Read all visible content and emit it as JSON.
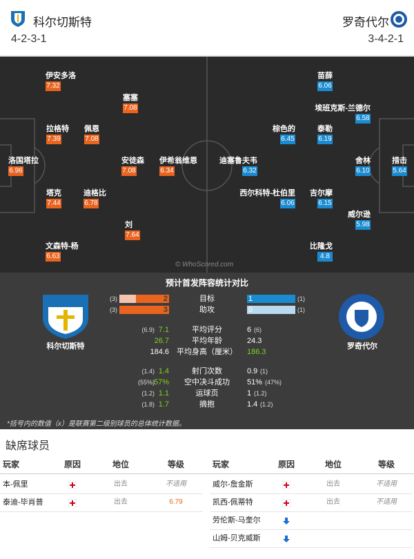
{
  "header": {
    "home": {
      "team": "科尔切斯特",
      "formation": "4-2-3-1"
    },
    "away": {
      "team": "罗奇代尔",
      "formation": "3-4-2-1"
    }
  },
  "pitch": {
    "home": [
      {
        "name": "伊安多洛",
        "rating": "7.32"
      },
      {
        "name": "塞塞",
        "rating": "7.08"
      },
      {
        "name": "拉格特",
        "rating": "7.39"
      },
      {
        "name": "佩恩",
        "rating": "7.08"
      },
      {
        "name": "洛国塔拉",
        "rating": "6.96"
      },
      {
        "name": "安徒森",
        "rating": "7.08"
      },
      {
        "name": "伊希翁维恩",
        "rating": "6.34"
      },
      {
        "name": "塔克",
        "rating": "7.44"
      },
      {
        "name": "迪格比",
        "rating": "6.78"
      },
      {
        "name": "刘",
        "rating": "7.64"
      },
      {
        "name": "文森特-杨",
        "rating": "6.63"
      }
    ],
    "away": [
      {
        "name": "苗薛",
        "rating": "6.06"
      },
      {
        "name": "埃班克斯-兰德尔",
        "rating": "6.58"
      },
      {
        "name": "棕色的",
        "rating": "6.45"
      },
      {
        "name": "泰勒",
        "rating": "6.19"
      },
      {
        "name": "迪塞鲁夫韦",
        "rating": "6.32"
      },
      {
        "name": "舍林",
        "rating": "6.10"
      },
      {
        "name": "措击",
        "rating": "5.64"
      },
      {
        "name": "西尔科特-杜伯里",
        "rating": "6.06"
      },
      {
        "name": "吉尔摩",
        "rating": "6.15"
      },
      {
        "name": "威尔逊",
        "rating": "5.98"
      },
      {
        "name": "比隆戈",
        "rating": "4.8"
      }
    ],
    "watermark": "© WhoScored.com"
  },
  "stats": {
    "title": "预计首发阵容统计对比",
    "home_team": "科尔切斯特",
    "away_team": "罗奇代尔",
    "bars": [
      {
        "label": "目标",
        "home": "2",
        "home_prev": "(3)",
        "away": "1",
        "away_prev": "(1)"
      },
      {
        "label": "助攻",
        "home": "3",
        "home_prev": "(3)",
        "away": "0",
        "away_prev": "(1)"
      }
    ],
    "rows": [
      {
        "label": "平均评分",
        "home": "7.1",
        "home_prev": "(6.9)",
        "away": "6",
        "away_prev": "(6)",
        "better": "home"
      },
      {
        "label": "平均年龄",
        "home": "26.7",
        "home_prev": null,
        "away": "24.3",
        "away_prev": null,
        "better": "home"
      },
      {
        "label": "平均身高（厘米）",
        "home": "184.6",
        "home_prev": null,
        "away": "186.3",
        "away_prev": null,
        "better": "away"
      },
      {
        "label": "射门次数",
        "home": "1.4",
        "home_prev": "(1.4)",
        "away": "0.9",
        "away_prev": "(1)",
        "better": "home"
      },
      {
        "label": "空中决斗成功",
        "home": "57%",
        "home_prev": "(55%)",
        "away": "51%",
        "away_prev": "(47%)",
        "better": "home"
      },
      {
        "label": "运球页",
        "home": "1.1",
        "home_prev": "(1.2)",
        "away": "1",
        "away_prev": "(1.2)",
        "better": "home"
      },
      {
        "label": "摘抱",
        "home": "1.7",
        "home_prev": "(1.8)",
        "away": "1.4",
        "away_prev": "(1.2)",
        "better": "home"
      }
    ],
    "footnote": "*括号内的数值（x）是联赛第二级别球员的总体统计数据。"
  },
  "absent": {
    "title": "缺席球员",
    "columns": [
      "玩家",
      "原因",
      "地位",
      "等级"
    ],
    "home": [
      {
        "player": "本-佩里",
        "icon": "cross",
        "status": "出去",
        "grade": "不适用"
      },
      {
        "player": "泰迪-毕肖普",
        "icon": "cross",
        "status": "出去",
        "grade": "6.79"
      }
    ],
    "away": [
      {
        "player": "威尔-詹金斯",
        "icon": "cross",
        "status": "出去",
        "grade": "不适用"
      },
      {
        "player": "凯西-佩蒂特",
        "icon": "cross",
        "status": "出去",
        "grade": "不适用"
      },
      {
        "player": "劳伦斯-马奎尔",
        "icon": "arrow",
        "status": null,
        "grade": null
      },
      {
        "player": "山姆-贝克威斯",
        "icon": "arrow",
        "status": null,
        "grade": null
      }
    ]
  }
}
